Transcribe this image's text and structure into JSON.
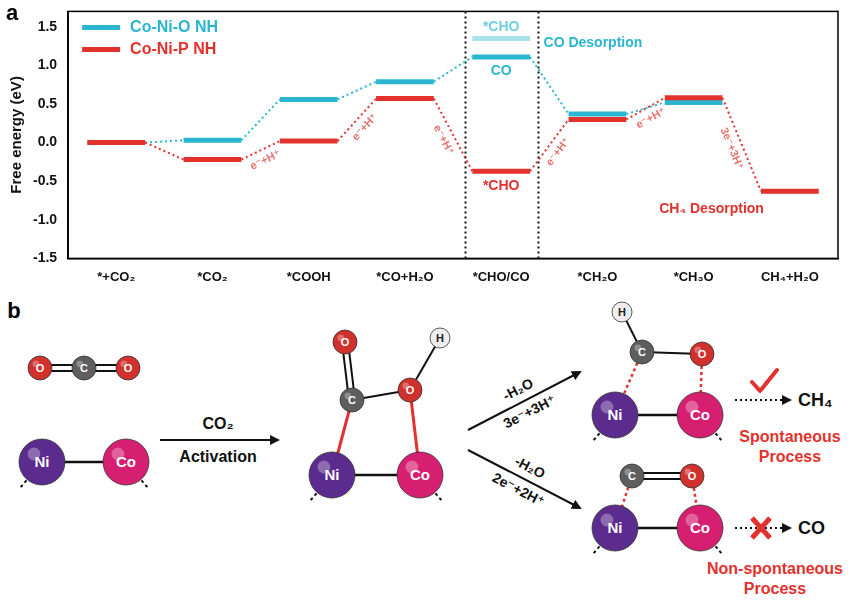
{
  "chart_data": {
    "type": "line",
    "panel": "a",
    "y_label": "Free energy (eV)",
    "categories": [
      "*+CO₂",
      "*CO₂",
      "*COOH",
      "*CO+H₂O",
      "*CHO/CO",
      "*CH₂O",
      "*CH₃O",
      "CH₄+H₂O"
    ],
    "series": [
      {
        "name": "Co-Ni-O NH",
        "color": "#2ab6d0",
        "values": [
          0,
          0.03,
          0.56,
          0.79,
          1.11,
          0.37,
          0.52,
          null
        ]
      },
      {
        "name": "Co-Ni-P NH",
        "color": "#e3312d",
        "values": [
          0,
          -0.22,
          0.02,
          0.57,
          -0.37,
          0.3,
          0.58,
          -0.63
        ]
      }
    ],
    "extra_levels": [
      {
        "series": "Co-Ni-O NH",
        "category": "*CHO/CO",
        "value": 1.35,
        "label": "*CHO"
      }
    ],
    "annotations": [
      {
        "text": "CO",
        "series": "Co-Ni-O NH",
        "category": "*CHO/CO",
        "value": 1.11
      },
      {
        "text": "*CHO",
        "series": "Co-Ni-P NH",
        "category": "*CHO/CO",
        "value": -0.37
      },
      {
        "text": "CO Desorption",
        "series": "Co-Ni-O NH",
        "category": "*CHO/CO",
        "value": 1.11
      },
      {
        "text": "CH₄ Desorption",
        "series": "Co-Ni-P NH",
        "category": "CH₄+H₂O",
        "value": -0.63
      }
    ],
    "step_labels": [
      {
        "text": "e⁻+H⁺",
        "series": "Co-Ni-P NH",
        "from": "*CO₂",
        "to": "*COOH"
      },
      {
        "text": "e⁻+H⁺",
        "series": "Co-Ni-P NH",
        "from": "*COOH",
        "to": "*CO+H₂O"
      },
      {
        "text": "e⁻+H⁺",
        "series": "Co-Ni-P NH",
        "from": "*CO+H₂O",
        "to": "*CHO/CO"
      },
      {
        "text": "e⁻+H⁺",
        "series": "Co-Ni-P NH",
        "from": "*CHO/CO",
        "to": "*CH₂O"
      },
      {
        "text": "e⁻+H⁺",
        "series": "Co-Ni-P NH",
        "from": "*CH₂O",
        "to": "*CH₃O"
      },
      {
        "text": "3e⁻+3H⁺",
        "series": "Co-Ni-P NH",
        "from": "*CH₃O",
        "to": "CH₄+H₂O"
      }
    ],
    "ylim": [
      -1.5,
      1.7
    ],
    "yticks": [
      -1.5,
      {
        "value": -1,
        "label": "-1.0"
      },
      -0.5,
      {
        "value": 0,
        "label": "0.0"
      },
      0.5,
      {
        "value": 1,
        "label": "1.0"
      },
      1.5
    ],
    "grid": false,
    "legend": "upper left"
  },
  "diagram": {
    "panel": "b",
    "atom_colors": {
      "O": "#d0312d",
      "C": "#5e5e5e",
      "H": "#eeeeee",
      "Ni": "#5b2b8e",
      "Co": "#d61f70"
    },
    "reactants": {
      "molecule": [
        "O",
        "C",
        "O"
      ],
      "metals": [
        "Ni",
        "Co"
      ]
    },
    "activation": {
      "above": "CO₂",
      "below": "Activation"
    },
    "intermediate": {
      "atoms": [
        "O",
        "C",
        "O",
        "H",
        "Ni",
        "Co"
      ]
    },
    "paths": [
      {
        "step": "-H₂O",
        "electrons": "3e⁻+3H⁺",
        "atoms": [
          "H",
          "C",
          "O",
          "Ni",
          "Co"
        ],
        "product": "CH₄",
        "verdict": "Spontaneous Process"
      },
      {
        "step": "-H₂O",
        "electrons": "2e⁻+2H⁺",
        "atoms": [
          "C",
          "O",
          "Ni",
          "Co"
        ],
        "product": "CO",
        "verdict": "Non-spontaneous Process"
      }
    ]
  }
}
